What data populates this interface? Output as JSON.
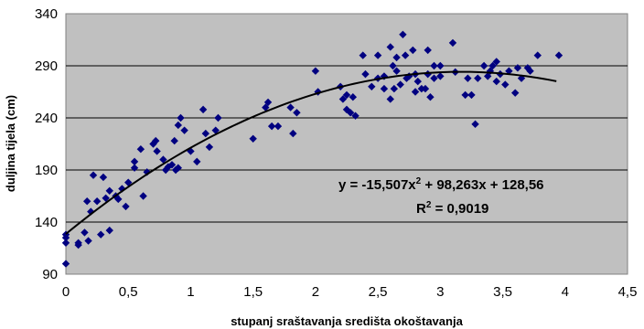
{
  "chart_data": {
    "type": "scatter",
    "title": "",
    "xlabel": "stupanj sraštavanja središta okoštavanja",
    "ylabel": "duljina tijela (cm)",
    "xlim": [
      0,
      4.5
    ],
    "ylim": [
      90,
      340
    ],
    "x_ticks": [
      "0",
      "0,5",
      "1",
      "1,5",
      "2",
      "2,5",
      "3",
      "3,5",
      "4",
      "4,5"
    ],
    "y_ticks": [
      "90",
      "140",
      "190",
      "240",
      "290",
      "340"
    ],
    "grid": "horizontal",
    "background": "#c0c0c0",
    "marker_color": "#000080",
    "trendline_color": "#000000",
    "equation": {
      "line1": {
        "pre": "y = -15,507x",
        "sup": "2",
        "post": " + 98,263x + 128,56"
      },
      "line2": {
        "pre": "R",
        "sup": "2",
        "post": " = 0,9019"
      }
    },
    "trendline": {
      "type": "polynomial",
      "coefficients": [
        -15.507,
        98.263,
        128.56
      ],
      "x_range": [
        0,
        3.93
      ]
    },
    "points": [
      [
        0,
        100
      ],
      [
        0,
        120
      ],
      [
        0,
        125
      ],
      [
        0,
        128
      ],
      [
        0.1,
        118
      ],
      [
        0.1,
        120
      ],
      [
        0.15,
        130
      ],
      [
        0.17,
        160
      ],
      [
        0.18,
        122
      ],
      [
        0.2,
        150
      ],
      [
        0.22,
        185
      ],
      [
        0.25,
        160
      ],
      [
        0.28,
        128
      ],
      [
        0.3,
        183
      ],
      [
        0.32,
        163
      ],
      [
        0.35,
        132
      ],
      [
        0.35,
        170
      ],
      [
        0.4,
        165
      ],
      [
        0.42,
        162
      ],
      [
        0.45,
        172
      ],
      [
        0.48,
        155
      ],
      [
        0.5,
        178
      ],
      [
        0.55,
        192
      ],
      [
        0.55,
        198
      ],
      [
        0.6,
        210
      ],
      [
        0.62,
        165
      ],
      [
        0.65,
        188
      ],
      [
        0.7,
        215
      ],
      [
        0.72,
        218
      ],
      [
        0.73,
        208
      ],
      [
        0.78,
        200
      ],
      [
        0.8,
        190
      ],
      [
        0.82,
        193
      ],
      [
        0.85,
        195
      ],
      [
        0.87,
        218
      ],
      [
        0.88,
        190
      ],
      [
        0.9,
        192
      ],
      [
        0.9,
        233
      ],
      [
        0.92,
        240
      ],
      [
        0.95,
        228
      ],
      [
        1.0,
        208
      ],
      [
        1.05,
        198
      ],
      [
        1.1,
        248
      ],
      [
        1.12,
        225
      ],
      [
        1.15,
        212
      ],
      [
        1.2,
        228
      ],
      [
        1.22,
        240
      ],
      [
        1.5,
        220
      ],
      [
        1.6,
        250
      ],
      [
        1.62,
        255
      ],
      [
        1.65,
        232
      ],
      [
        1.7,
        232
      ],
      [
        1.8,
        250
      ],
      [
        1.82,
        225
      ],
      [
        1.85,
        245
      ],
      [
        2.0,
        285
      ],
      [
        2.02,
        265
      ],
      [
        2.2,
        270
      ],
      [
        2.22,
        258
      ],
      [
        2.25,
        262
      ],
      [
        2.25,
        248
      ],
      [
        2.28,
        245
      ],
      [
        2.3,
        260
      ],
      [
        2.32,
        242
      ],
      [
        2.38,
        300
      ],
      [
        2.4,
        282
      ],
      [
        2.45,
        270
      ],
      [
        2.5,
        278
      ],
      [
        2.5,
        300
      ],
      [
        2.55,
        268
      ],
      [
        2.55,
        280
      ],
      [
        2.6,
        258
      ],
      [
        2.6,
        308
      ],
      [
        2.62,
        290
      ],
      [
        2.63,
        268
      ],
      [
        2.65,
        298
      ],
      [
        2.65,
        285
      ],
      [
        2.68,
        272
      ],
      [
        2.7,
        320
      ],
      [
        2.72,
        300
      ],
      [
        2.73,
        278
      ],
      [
        2.75,
        280
      ],
      [
        2.78,
        305
      ],
      [
        2.8,
        265
      ],
      [
        2.8,
        282
      ],
      [
        2.82,
        275
      ],
      [
        2.85,
        268
      ],
      [
        2.88,
        268
      ],
      [
        2.9,
        305
      ],
      [
        2.9,
        282
      ],
      [
        2.92,
        260
      ],
      [
        2.95,
        290
      ],
      [
        2.95,
        278
      ],
      [
        3.0,
        290
      ],
      [
        3.0,
        280
      ],
      [
        3.1,
        312
      ],
      [
        3.12,
        284
      ],
      [
        3.2,
        262
      ],
      [
        3.22,
        278
      ],
      [
        3.25,
        262
      ],
      [
        3.28,
        234
      ],
      [
        3.3,
        278
      ],
      [
        3.35,
        290
      ],
      [
        3.38,
        280
      ],
      [
        3.4,
        285
      ],
      [
        3.42,
        290
      ],
      [
        3.45,
        294
      ],
      [
        3.45,
        275
      ],
      [
        3.48,
        282
      ],
      [
        3.52,
        272
      ],
      [
        3.55,
        285
      ],
      [
        3.6,
        264
      ],
      [
        3.62,
        288
      ],
      [
        3.65,
        278
      ],
      [
        3.7,
        288
      ],
      [
        3.72,
        285
      ],
      [
        3.78,
        300
      ],
      [
        3.95,
        300
      ]
    ]
  }
}
